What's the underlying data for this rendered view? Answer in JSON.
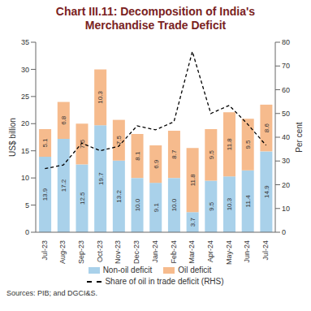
{
  "chart_data": {
    "type": "bar",
    "title": "Chart III.11: Decomposition of India's Merchandise Trade Deficit",
    "categories": [
      "Jul-23",
      "Aug-23",
      "Sep-23",
      "Oct-23",
      "Nov-23",
      "Dec-23",
      "Jan-24",
      "Feb-24",
      "Mar-24",
      "Apr-24",
      "May-24",
      "Jun-24",
      "Jul-24"
    ],
    "stacked": true,
    "data_labels": true,
    "y_label": "US$ billion",
    "y2_label": "Per cent",
    "ylim": [
      0,
      35
    ],
    "yticks": [
      0,
      5,
      10,
      15,
      20,
      25,
      30,
      35
    ],
    "y2lim": [
      0,
      80
    ],
    "y2ticks": [
      0,
      10,
      20,
      30,
      40,
      50,
      60,
      70,
      80
    ],
    "series": [
      {
        "name": "Non-oil deficit",
        "type": "bar",
        "color": "#a9d1ea",
        "values": [
          13.9,
          17.2,
          12.5,
          19.7,
          13.2,
          10.0,
          9.1,
          10.0,
          3.7,
          9.5,
          10.3,
          11.4,
          14.9
        ],
        "value_labels": [
          "13.9",
          "17.2",
          "12.5",
          "19.7",
          "13.2",
          "10.0",
          "9.1",
          "10.0",
          "3.7",
          "9.5",
          "10.3",
          "11.4",
          "14.9"
        ]
      },
      {
        "name": "Oil deficit",
        "type": "bar",
        "color": "#f6bb8d",
        "values": [
          5.1,
          6.8,
          7.5,
          10.3,
          7.5,
          8.1,
          6.9,
          8.7,
          11.8,
          9.5,
          11.8,
          9.5,
          8.6
        ],
        "value_labels": [
          "5.1",
          "6.8",
          "7.5",
          "10.3",
          "7.5",
          "8.1",
          "6.9",
          "8.7",
          "11.8",
          "9.5",
          "11.8",
          "9.5",
          "8.6"
        ]
      },
      {
        "name": "Share of oil in trade deficit (RHS)",
        "type": "line",
        "axis": "y2",
        "color": "#000000",
        "line_style": "dashed",
        "values": [
          26.8,
          28.3,
          37.5,
          34.3,
          36.2,
          44.8,
          43.1,
          46.5,
          76.1,
          50.0,
          53.4,
          45.5,
          36.6
        ]
      }
    ],
    "sources": "Sources: PIB; and DGCI&S."
  }
}
